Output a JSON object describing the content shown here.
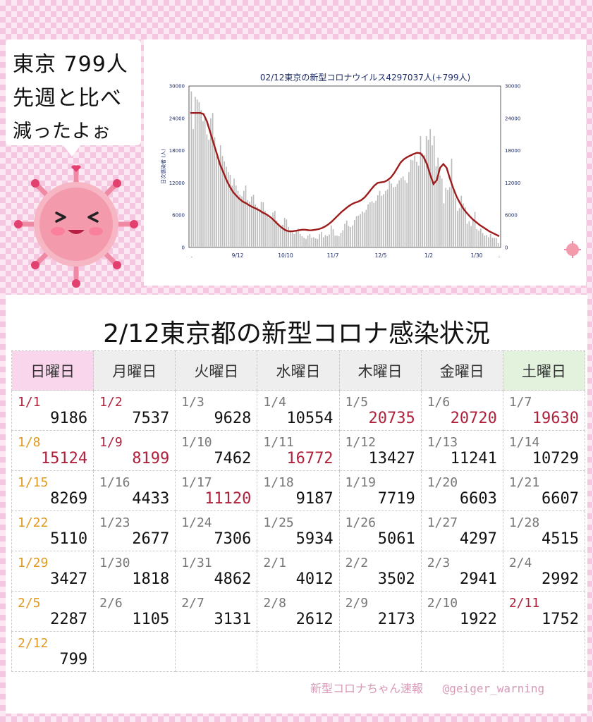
{
  "speech": {
    "line1": "東京 799人",
    "line2": "先週と比べ",
    "line3": "減ったよぉ"
  },
  "chart_data": {
    "type": "bar",
    "title": "02/12東京の新型コロナウイルス4297037人(+799人)",
    "ylabel": "日次感染者 (人)",
    "ylim": [
      0,
      30000
    ],
    "yticks": [
      "0",
      "6000",
      "12000",
      "18000",
      "24000",
      "30000"
    ],
    "xticks": [
      ".",
      "9/12",
      "10/10",
      "11/7",
      "12/5",
      "1/2",
      "1/30",
      "."
    ],
    "legend": "none",
    "grid": false,
    "colors": {
      "bars": "#bbbbbb",
      "line": "#9e1b1b"
    },
    "series": [
      {
        "kind": "bar",
        "values": [
          29000,
          22000,
          28000,
          27500,
          27000,
          25500,
          23500,
          24000,
          21000,
          20000,
          24000,
          25000,
          20500,
          17000,
          16500,
          19000,
          17000,
          16000,
          15000,
          14000,
          13500,
          11500,
          12800,
          11500,
          10500,
          9800,
          9500,
          10500,
          11500,
          8800,
          8500,
          9500,
          9800,
          8000,
          7500,
          7000,
          8500,
          8400,
          6800,
          6000,
          5500,
          5200,
          6500,
          6800,
          5000,
          4500,
          4000,
          4200,
          5500,
          5200,
          3800,
          3200,
          2800,
          2500,
          3200,
          3500,
          2500,
          2100,
          1800,
          1600,
          2200,
          2500,
          1800,
          1900,
          1700,
          1600,
          2500,
          2900,
          1900,
          2300,
          2100,
          2400,
          4100,
          3400,
          2200,
          2200,
          2100,
          2700,
          3200,
          4400,
          5000,
          4000,
          3800,
          4100,
          5100,
          5800,
          5900,
          6200,
          6700,
          6500,
          7000,
          8000,
          8400,
          8600,
          8300,
          8700,
          9700,
          10500,
          9600,
          9900,
          10500,
          10800,
          12400,
          11900,
          11200,
          11300,
          11800,
          12500,
          12900,
          13200,
          12500,
          12000,
          14000,
          16300,
          16200,
          17100,
          15900,
          15200,
          20700,
          17500,
          17200,
          20700,
          20000,
          22000,
          19000,
          20700,
          15100,
          16700,
          13400,
          12800,
          8200,
          11100,
          10700,
          11200,
          16500,
          10600,
          9200,
          6800,
          7300,
          9600,
          8200,
          7500,
          4400,
          4900,
          4000,
          5100,
          6600,
          3400,
          3100,
          3500,
          2700,
          2200,
          2300,
          1900,
          2500,
          1800,
          1800,
          1750,
          800
        ]
      },
      {
        "kind": "line",
        "values": [
          25000,
          25000,
          25000,
          25000,
          24800,
          23500,
          21500,
          19500,
          17500,
          15500,
          14000,
          12500,
          11300,
          10300,
          9600,
          9000,
          8500,
          8200,
          7800,
          7500,
          7200,
          6900,
          6500,
          6200,
          5800,
          5300,
          4700,
          4100,
          3600,
          3200,
          3000,
          3000,
          3100,
          3200,
          3300,
          3300,
          3200,
          3200,
          3300,
          3400,
          3600,
          3900,
          4300,
          4800,
          5400,
          6000,
          6600,
          7100,
          7600,
          8000,
          8300,
          8500,
          8800,
          9300,
          10000,
          10800,
          11500,
          12000,
          12100,
          12200,
          12500,
          13000,
          13800,
          14800,
          15800,
          16400,
          16800,
          17100,
          17400,
          17600,
          17500,
          16800,
          15500,
          13500,
          11800,
          12500,
          14800,
          15500,
          14800,
          12800,
          11000,
          9500,
          8300,
          7300,
          6500,
          5800,
          5200,
          4700,
          4200,
          3800,
          3400,
          3000,
          2700,
          2400,
          2100
        ]
      }
    ]
  },
  "table": {
    "title": "2/12東京都の新型コロナ感染状況",
    "headers": [
      "日曜日",
      "月曜日",
      "火曜日",
      "水曜日",
      "木曜日",
      "金曜日",
      "土曜日"
    ],
    "rows": [
      [
        {
          "d": "1/1",
          "v": "9186",
          "dc": "hol"
        },
        {
          "d": "1/2",
          "v": "7537",
          "dc": "hol"
        },
        {
          "d": "1/3",
          "v": "9628"
        },
        {
          "d": "1/4",
          "v": "10554"
        },
        {
          "d": "1/5",
          "v": "20735",
          "hot": true
        },
        {
          "d": "1/6",
          "v": "20720",
          "hot": true
        },
        {
          "d": "1/7",
          "v": "19630",
          "hot": true
        }
      ],
      [
        {
          "d": "1/8",
          "v": "15124",
          "dc": "sun",
          "hot": true
        },
        {
          "d": "1/9",
          "v": "8199",
          "dc": "hol",
          "hot": true
        },
        {
          "d": "1/10",
          "v": "7462"
        },
        {
          "d": "1/11",
          "v": "16772",
          "hot": true
        },
        {
          "d": "1/12",
          "v": "13427"
        },
        {
          "d": "1/13",
          "v": "11241"
        },
        {
          "d": "1/14",
          "v": "10729"
        }
      ],
      [
        {
          "d": "1/15",
          "v": "8269",
          "dc": "sun"
        },
        {
          "d": "1/16",
          "v": "4433"
        },
        {
          "d": "1/17",
          "v": "11120",
          "hot": true
        },
        {
          "d": "1/18",
          "v": "9187"
        },
        {
          "d": "1/19",
          "v": "7719"
        },
        {
          "d": "1/20",
          "v": "6603"
        },
        {
          "d": "1/21",
          "v": "6607"
        }
      ],
      [
        {
          "d": "1/22",
          "v": "5110",
          "dc": "sun"
        },
        {
          "d": "1/23",
          "v": "2677"
        },
        {
          "d": "1/24",
          "v": "7306"
        },
        {
          "d": "1/25",
          "v": "5934"
        },
        {
          "d": "1/26",
          "v": "5061"
        },
        {
          "d": "1/27",
          "v": "4297"
        },
        {
          "d": "1/28",
          "v": "4515"
        }
      ],
      [
        {
          "d": "1/29",
          "v": "3427",
          "dc": "sun"
        },
        {
          "d": "1/30",
          "v": "1818"
        },
        {
          "d": "1/31",
          "v": "4862"
        },
        {
          "d": "2/1",
          "v": "4012"
        },
        {
          "d": "2/2",
          "v": "3502"
        },
        {
          "d": "2/3",
          "v": "2941"
        },
        {
          "d": "2/4",
          "v": "2992"
        }
      ],
      [
        {
          "d": "2/5",
          "v": "2287",
          "dc": "sun"
        },
        {
          "d": "2/6",
          "v": "1105"
        },
        {
          "d": "2/7",
          "v": "3131"
        },
        {
          "d": "2/8",
          "v": "2612"
        },
        {
          "d": "2/9",
          "v": "2173"
        },
        {
          "d": "2/10",
          "v": "1922"
        },
        {
          "d": "2/11",
          "v": "1752",
          "dc": "hol"
        }
      ],
      [
        {
          "d": "2/12",
          "v": "799",
          "dc": "sun"
        },
        {
          "d": "",
          "v": ""
        },
        {
          "d": "",
          "v": ""
        },
        {
          "d": "",
          "v": ""
        },
        {
          "d": "",
          "v": ""
        },
        {
          "d": "",
          "v": ""
        },
        {
          "d": "",
          "v": ""
        }
      ]
    ]
  },
  "footer": {
    "brand": "新型コロナちゃん速報",
    "handle": "@geiger_warning"
  }
}
